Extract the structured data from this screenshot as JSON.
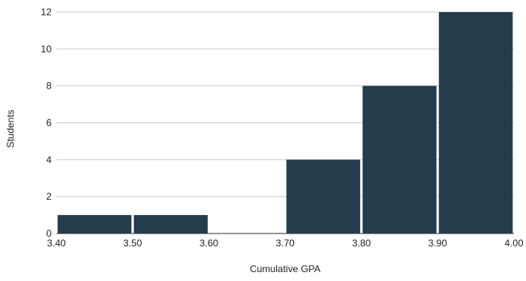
{
  "chart_data": {
    "type": "bar",
    "title": "",
    "xlabel": "Cumulative GPA",
    "ylabel": "Students",
    "bins": [
      {
        "start": 3.4,
        "end": 3.5,
        "value": 1
      },
      {
        "start": 3.5,
        "end": 3.6,
        "value": 1
      },
      {
        "start": 3.6,
        "end": 3.7,
        "value": 0
      },
      {
        "start": 3.7,
        "end": 3.8,
        "value": 4
      },
      {
        "start": 3.8,
        "end": 3.9,
        "value": 8
      },
      {
        "start": 3.9,
        "end": 4.0,
        "value": 12
      }
    ],
    "x_ticks": [
      "3.40",
      "3.50",
      "3.60",
      "3.70",
      "3.80",
      "3.90",
      "4.00"
    ],
    "y_ticks": [
      "0",
      "2",
      "4",
      "6",
      "8",
      "10",
      "12"
    ],
    "xlim": [
      3.4,
      4.0
    ],
    "ylim": [
      0,
      12
    ],
    "grid": true,
    "legend": "none",
    "bar_color": "#233d4d",
    "grid_color": "#cccccc",
    "text_color": "#222222"
  }
}
